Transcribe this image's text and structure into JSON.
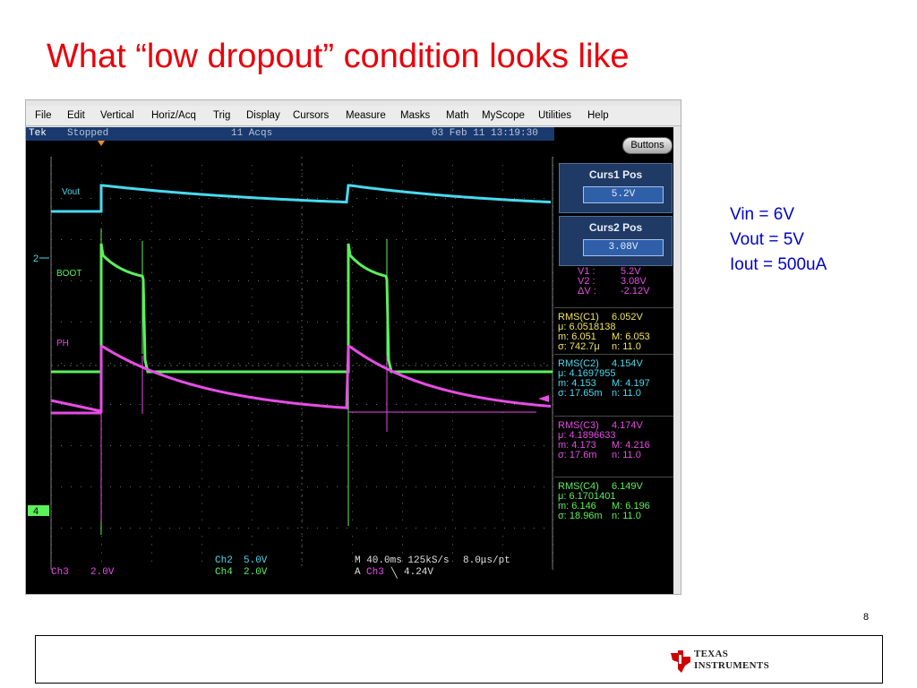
{
  "slide": {
    "title": "What “low dropout” condition looks like",
    "page_number": "8",
    "notes": [
      "Vin = 6V",
      "Vout = 5V",
      "Iout = 500uA"
    ],
    "logo_text": [
      "TEXAS",
      "INSTRUMENTS"
    ]
  },
  "menu": [
    "File",
    "Edit",
    "Vertical",
    "Horiz/Acq",
    "Trig",
    "Display",
    "Cursors",
    "Measure",
    "Masks",
    "Math",
    "MyScope",
    "Utilities",
    "Help"
  ],
  "status": {
    "brand": "Tek",
    "run_state": "Stopped",
    "acqs": "11 Acqs",
    "timestamp": "03 Feb 11 13:19:30"
  },
  "buttons_label": "Buttons",
  "cursors": [
    {
      "title": "Curs1 Pos",
      "value": "5.2V"
    },
    {
      "title": "Curs2 Pos",
      "value": "3.08V"
    }
  ],
  "cursor_readout": [
    {
      "label": "V1 :",
      "value": "5.2V"
    },
    {
      "label": "V2 :",
      "value": "3.08V"
    },
    {
      "label": "ΔV :",
      "value": "-2.12V"
    }
  ],
  "measurements": [
    {
      "color": "#f2e45c",
      "rows": [
        [
          "RMS(C1)",
          "6.052V"
        ],
        [
          "μ: 6.0518138",
          ""
        ],
        [
          "m: 6.051",
          "M: 6.053"
        ],
        [
          "σ: 742.7μ",
          "n:  11.0"
        ]
      ]
    },
    {
      "color": "#4ad9f0",
      "rows": [
        [
          "RMS(C2)",
          "4.154V"
        ],
        [
          "μ: 4.1697955",
          ""
        ],
        [
          "m: 4.153",
          "M: 4.197"
        ],
        [
          "σ: 17.65m",
          "n:  11.0"
        ]
      ]
    },
    {
      "color": "#e64de6",
      "rows": [
        [
          "RMS(C3)",
          "4.174V"
        ],
        [
          "μ: 4.1896633",
          ""
        ],
        [
          "m: 4.173",
          "M: 4.216"
        ],
        [
          "σ: 17.6m",
          "n:  11.0"
        ]
      ]
    },
    {
      "color": "#5cf05c",
      "rows": [
        [
          "RMS(C4)",
          "6.149V"
        ],
        [
          "μ: 6.1701401",
          ""
        ],
        [
          "m: 6.146",
          "M: 6.196"
        ],
        [
          "σ: 18.96m",
          "n:  11.0"
        ]
      ]
    }
  ],
  "channel_labels": {
    "ch2_trace": "Vout",
    "ch4_trace": "BOOT",
    "ch3_trace": "PH"
  },
  "markers": {
    "ch2": "2",
    "ch4": "4"
  },
  "scales": {
    "ch2": "Ch2",
    "ch2_val": "5.0V",
    "ch4": "Ch4",
    "ch4_val": "2.0V",
    "ch3": "Ch3",
    "ch3_val": "2.0V",
    "timebase": "M 40.0ms 125kS/s",
    "resolution": "8.0μs/pt",
    "trig_prefix": "A",
    "trig_ch": "Ch3",
    "trig_slope": "╲",
    "trig_level": "4.24V"
  },
  "colors": {
    "ch2": "#4ad9f0",
    "ch3": "#e64de6",
    "ch4": "#5cf05c",
    "title": "#e8000b",
    "notes": "#0000cc",
    "ti_red": "#cc0000"
  }
}
